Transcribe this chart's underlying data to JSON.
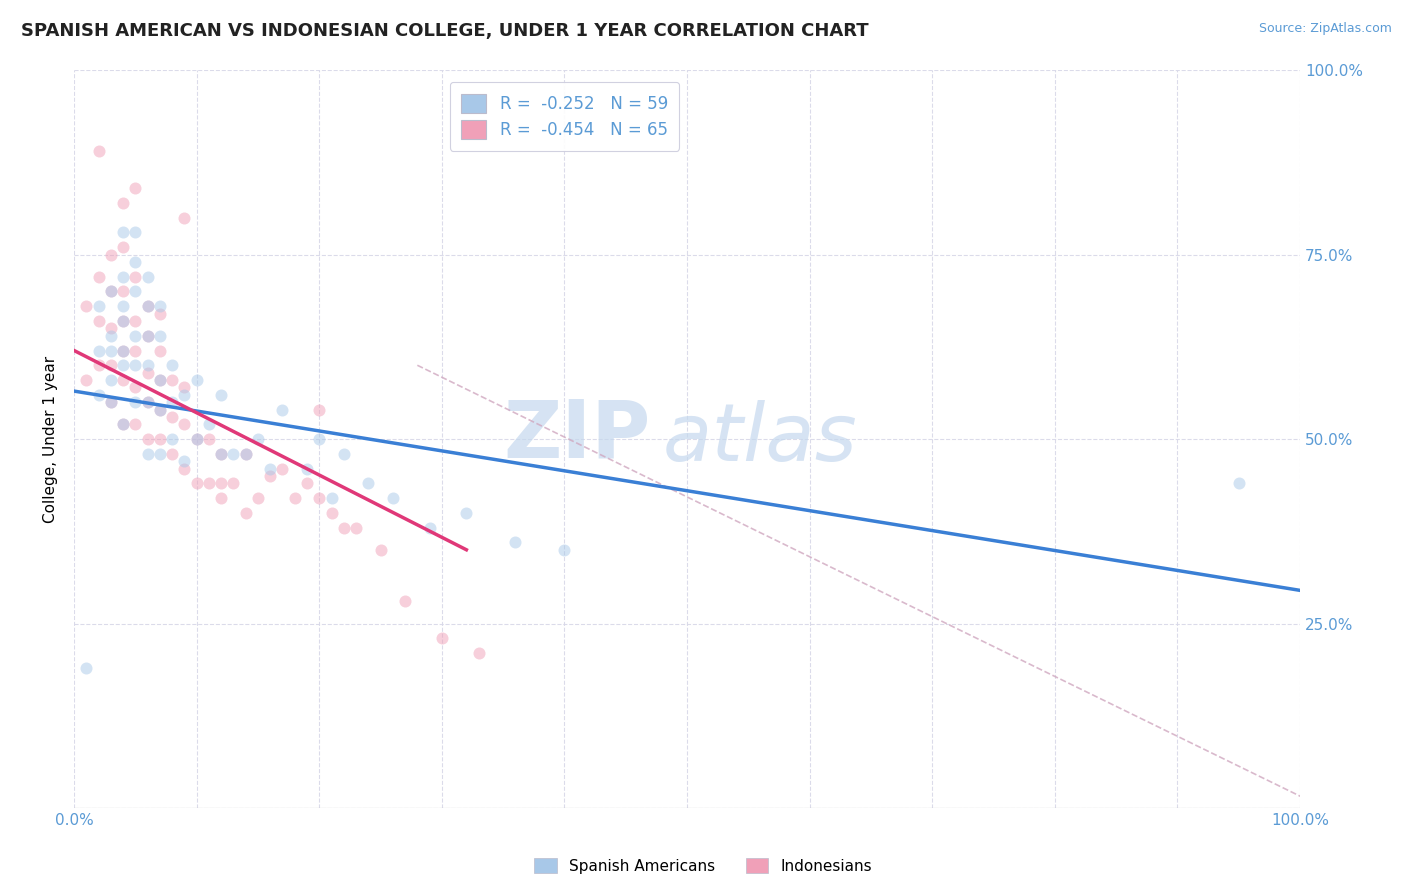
{
  "title": "SPANISH AMERICAN VS INDONESIAN COLLEGE, UNDER 1 YEAR CORRELATION CHART",
  "source": "Source: ZipAtlas.com",
  "ylabel": "College, Under 1 year",
  "xlim": [
    0.0,
    1.0
  ],
  "ylim": [
    0.0,
    1.0
  ],
  "xticks": [
    0.0,
    0.1,
    0.2,
    0.3,
    0.4,
    0.5,
    0.6,
    0.7,
    0.8,
    0.9,
    1.0
  ],
  "xticklabels_show": {
    "0.0": "0.0%",
    "1.0": "100.0%"
  },
  "yticks": [
    0.25,
    0.5,
    0.75,
    1.0
  ],
  "yticklabels_right": [
    "25.0%",
    "50.0%",
    "75.0%",
    "100.0%"
  ],
  "blue_color": "#a8c8e8",
  "pink_color": "#f0a0b8",
  "blue_line_color": "#3a7fd5",
  "pink_line_color": "#e03878",
  "dashed_line_color": "#d0a8c0",
  "legend_label1": "Spanish Americans",
  "legend_label2": "Indonesians",
  "watermark_zip": "ZIP",
  "watermark_atlas": "atlas",
  "blue_scatter_x": [
    0.01,
    0.02,
    0.02,
    0.02,
    0.03,
    0.03,
    0.03,
    0.03,
    0.03,
    0.04,
    0.04,
    0.04,
    0.04,
    0.04,
    0.04,
    0.04,
    0.05,
    0.05,
    0.05,
    0.05,
    0.05,
    0.05,
    0.06,
    0.06,
    0.06,
    0.06,
    0.06,
    0.06,
    0.07,
    0.07,
    0.07,
    0.07,
    0.07,
    0.08,
    0.08,
    0.08,
    0.09,
    0.09,
    0.1,
    0.1,
    0.11,
    0.12,
    0.12,
    0.13,
    0.14,
    0.15,
    0.16,
    0.17,
    0.19,
    0.2,
    0.21,
    0.22,
    0.24,
    0.26,
    0.29,
    0.32,
    0.36,
    0.4,
    0.95
  ],
  "blue_scatter_y": [
    0.19,
    0.56,
    0.62,
    0.68,
    0.55,
    0.58,
    0.62,
    0.64,
    0.7,
    0.52,
    0.6,
    0.62,
    0.66,
    0.68,
    0.72,
    0.78,
    0.55,
    0.6,
    0.64,
    0.7,
    0.74,
    0.78,
    0.48,
    0.55,
    0.6,
    0.64,
    0.68,
    0.72,
    0.48,
    0.54,
    0.58,
    0.64,
    0.68,
    0.5,
    0.55,
    0.6,
    0.47,
    0.56,
    0.5,
    0.58,
    0.52,
    0.48,
    0.56,
    0.48,
    0.48,
    0.5,
    0.46,
    0.54,
    0.46,
    0.5,
    0.42,
    0.48,
    0.44,
    0.42,
    0.38,
    0.4,
    0.36,
    0.35,
    0.44
  ],
  "pink_scatter_x": [
    0.01,
    0.01,
    0.02,
    0.02,
    0.02,
    0.03,
    0.03,
    0.03,
    0.03,
    0.03,
    0.04,
    0.04,
    0.04,
    0.04,
    0.04,
    0.04,
    0.05,
    0.05,
    0.05,
    0.05,
    0.05,
    0.06,
    0.06,
    0.06,
    0.06,
    0.06,
    0.07,
    0.07,
    0.07,
    0.07,
    0.07,
    0.08,
    0.08,
    0.08,
    0.09,
    0.09,
    0.09,
    0.1,
    0.1,
    0.11,
    0.11,
    0.12,
    0.12,
    0.13,
    0.14,
    0.14,
    0.15,
    0.16,
    0.17,
    0.18,
    0.19,
    0.2,
    0.21,
    0.22,
    0.23,
    0.25,
    0.27,
    0.3,
    0.33,
    0.2,
    0.04,
    0.05,
    0.09,
    0.12,
    0.02
  ],
  "pink_scatter_y": [
    0.58,
    0.68,
    0.6,
    0.66,
    0.72,
    0.55,
    0.6,
    0.65,
    0.7,
    0.75,
    0.52,
    0.58,
    0.62,
    0.66,
    0.7,
    0.76,
    0.52,
    0.57,
    0.62,
    0.66,
    0.72,
    0.5,
    0.55,
    0.59,
    0.64,
    0.68,
    0.5,
    0.54,
    0.58,
    0.62,
    0.67,
    0.48,
    0.53,
    0.58,
    0.46,
    0.52,
    0.57,
    0.44,
    0.5,
    0.44,
    0.5,
    0.42,
    0.48,
    0.44,
    0.4,
    0.48,
    0.42,
    0.45,
    0.46,
    0.42,
    0.44,
    0.42,
    0.4,
    0.38,
    0.38,
    0.35,
    0.28,
    0.23,
    0.21,
    0.54,
    0.82,
    0.84,
    0.8,
    0.44,
    0.89
  ],
  "blue_line_x": [
    0.0,
    1.0
  ],
  "blue_line_y": [
    0.565,
    0.295
  ],
  "pink_line_x": [
    0.0,
    0.32
  ],
  "pink_line_y": [
    0.62,
    0.35
  ],
  "dashed_line_x": [
    0.28,
    1.02
  ],
  "dashed_line_y": [
    0.6,
    0.0
  ],
  "background_color": "#ffffff",
  "grid_color": "#d8d8e8",
  "tick_color": "#5b9bd5",
  "title_fontsize": 13,
  "axis_label_fontsize": 11,
  "tick_fontsize": 11,
  "scatter_size": 75,
  "scatter_alpha": 0.5
}
